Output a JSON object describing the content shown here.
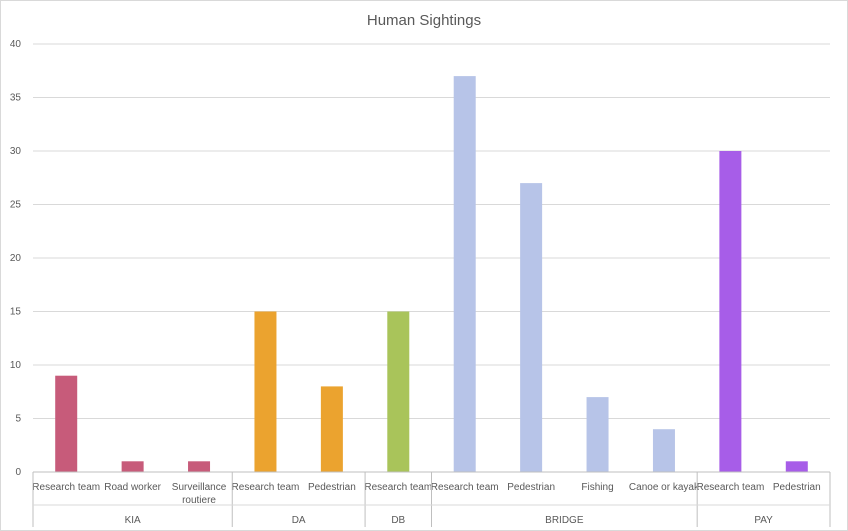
{
  "chart_data": {
    "type": "bar",
    "title": "Human Sightings",
    "xlabel": "",
    "ylabel": "",
    "ylim": [
      0,
      40
    ],
    "yticks": [
      0,
      5,
      10,
      15,
      20,
      25,
      30,
      35,
      40
    ],
    "grid": true,
    "legend": "none",
    "groups": [
      {
        "name": "KIA",
        "color": "#C75B7A",
        "items": [
          {
            "label": [
              "Research team"
            ],
            "value": 9
          },
          {
            "label": [
              "Road worker"
            ],
            "value": 1
          },
          {
            "label": [
              "Surveillance",
              "routiere"
            ],
            "value": 1
          }
        ]
      },
      {
        "name": "DA",
        "color": "#EBA32F",
        "items": [
          {
            "label": [
              "Research team"
            ],
            "value": 15
          },
          {
            "label": [
              "Pedestrian"
            ],
            "value": 8
          }
        ]
      },
      {
        "name": "DB",
        "color": "#A9C45A",
        "items": [
          {
            "label": [
              "Research team"
            ],
            "value": 15
          }
        ]
      },
      {
        "name": "BRIDGE",
        "color": "#B7C4E8",
        "items": [
          {
            "label": [
              "Research team"
            ],
            "value": 37
          },
          {
            "label": [
              "Pedestrian"
            ],
            "value": 27
          },
          {
            "label": [
              "Fishing"
            ],
            "value": 7
          },
          {
            "label": [
              "Canoe or kayak"
            ],
            "value": 4
          }
        ]
      },
      {
        "name": "PAY",
        "color": "#A75DE8",
        "items": [
          {
            "label": [
              "Research team"
            ],
            "value": 30
          },
          {
            "label": [
              "Pedestrian"
            ],
            "value": 1
          }
        ]
      }
    ]
  }
}
